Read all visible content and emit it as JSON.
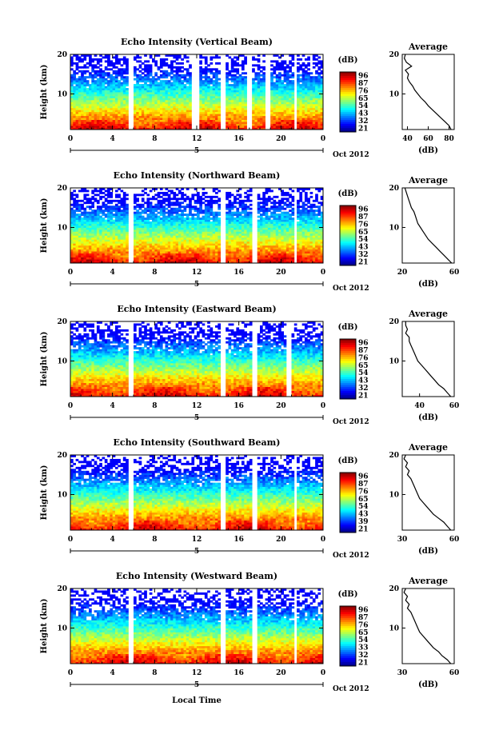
{
  "figure": {
    "xlabel": "Local Time",
    "date_label": "Oct 2012",
    "day_label": "5",
    "ylabel": "Height (km)",
    "avg_title": "Average",
    "avg_xlabel": "(dB)",
    "colorbar_unit": "(dB)"
  },
  "chart_data": [
    {
      "type": "heatmap",
      "title": "Echo Intensity (Vertical Beam)",
      "xlabel": "Local Time",
      "ylabel": "Height (km)",
      "x_ticks": [
        "0",
        "4",
        "8",
        "12",
        "16",
        "20",
        "0"
      ],
      "y_ticks": [
        "10",
        "20"
      ],
      "xlim": [
        0,
        24
      ],
      "ylim": [
        1,
        20
      ],
      "colorbar_ticks": [
        "96",
        "87",
        "76",
        "65",
        "54",
        "43",
        "32",
        "21"
      ],
      "data_gaps_hours": [
        [
          5.4,
          6.0
        ],
        [
          11.6,
          12.3
        ],
        [
          14.3,
          14.8
        ],
        [
          16.7,
          17.2
        ],
        [
          18.4,
          19.0
        ],
        [
          21.2,
          21.6
        ]
      ],
      "average_profile": {
        "xlim": [
          35,
          85
        ],
        "x_ticks": [
          "40",
          "60",
          "80"
        ],
        "y_ticks": [
          "10",
          "20"
        ],
        "height_km": [
          1,
          2,
          3,
          4,
          5,
          6,
          7,
          8,
          9,
          10,
          11,
          12,
          13,
          14,
          15,
          16,
          17,
          18,
          19,
          20
        ],
        "db": [
          82,
          80,
          76,
          72,
          68,
          64,
          60,
          57,
          53,
          50,
          47,
          45,
          42,
          40,
          41,
          38,
          44,
          39,
          37,
          38
        ]
      }
    },
    {
      "type": "heatmap",
      "title": "Echo Intensity (Northward Beam)",
      "xlabel": "Local Time",
      "ylabel": "Height (km)",
      "x_ticks": [
        "0",
        "4",
        "8",
        "12",
        "16",
        "20",
        "0"
      ],
      "y_ticks": [
        "10",
        "20"
      ],
      "xlim": [
        0,
        24
      ],
      "ylim": [
        1,
        20
      ],
      "colorbar_ticks": [
        "96",
        "87",
        "76",
        "65",
        "54",
        "43",
        "32",
        "21"
      ],
      "data_gaps_hours": [
        [
          5.4,
          6.0
        ],
        [
          14.3,
          14.8
        ],
        [
          17.3,
          17.8
        ],
        [
          21.2,
          21.6
        ]
      ],
      "average_profile": {
        "xlim": [
          20,
          60
        ],
        "x_ticks": [
          "20",
          "60"
        ],
        "y_ticks": [
          "10",
          "20"
        ],
        "height_km": [
          1,
          2,
          3,
          4,
          5,
          6,
          7,
          8,
          9,
          10,
          11,
          12,
          13,
          14,
          15,
          16,
          17,
          18,
          19,
          20
        ],
        "db": [
          58,
          55,
          52,
          49,
          46,
          43,
          40,
          38,
          36,
          34,
          32,
          31,
          30,
          29,
          27,
          26,
          25,
          24,
          23,
          22
        ]
      }
    },
    {
      "type": "heatmap",
      "title": "Echo Intensity (Eastward Beam)",
      "xlabel": "Local Time",
      "ylabel": "Height (km)",
      "x_ticks": [
        "0",
        "4",
        "8",
        "12",
        "16",
        "20",
        "0"
      ],
      "y_ticks": [
        "10",
        "20"
      ],
      "xlim": [
        0,
        24
      ],
      "ylim": [
        1,
        20
      ],
      "colorbar_ticks": [
        "96",
        "87",
        "76",
        "65",
        "54",
        "43",
        "32",
        "21"
      ],
      "data_gaps_hours": [
        [
          5.4,
          6.0
        ],
        [
          14.3,
          14.8
        ],
        [
          17.3,
          17.8
        ],
        [
          20.5,
          20.9
        ]
      ],
      "average_profile": {
        "xlim": [
          30,
          60
        ],
        "x_ticks": [
          "40",
          "60"
        ],
        "y_ticks": [
          "10",
          "20"
        ],
        "height_km": [
          1,
          2,
          3,
          4,
          5,
          6,
          7,
          8,
          9,
          10,
          11,
          12,
          13,
          14,
          15,
          16,
          17,
          18,
          19,
          20
        ],
        "db": [
          58,
          56,
          54,
          51,
          49,
          47,
          45,
          43,
          41,
          39,
          38,
          37,
          36,
          35,
          34,
          34,
          32,
          33,
          32,
          32
        ]
      }
    },
    {
      "type": "heatmap",
      "title": "Echo Intensity (Southward Beam)",
      "xlabel": "Local Time",
      "ylabel": "Height (km)",
      "x_ticks": [
        "0",
        "4",
        "8",
        "12",
        "16",
        "20",
        "0"
      ],
      "y_ticks": [
        "10",
        "20"
      ],
      "xlim": [
        0,
        24
      ],
      "ylim": [
        1,
        20
      ],
      "colorbar_ticks": [
        "96",
        "87",
        "76",
        "65",
        "54",
        "43",
        "39",
        "21"
      ],
      "data_gaps_hours": [
        [
          5.4,
          6.0
        ],
        [
          14.3,
          14.8
        ],
        [
          17.3,
          17.8
        ],
        [
          21.2,
          21.6
        ]
      ],
      "average_profile": {
        "xlim": [
          30,
          60
        ],
        "x_ticks": [
          "30",
          "60"
        ],
        "y_ticks": [
          "10",
          "20"
        ],
        "height_km": [
          1,
          2,
          3,
          4,
          5,
          6,
          7,
          8,
          9,
          10,
          11,
          12,
          13,
          14,
          15,
          16,
          17,
          18,
          19,
          20
        ],
        "db": [
          58,
          56,
          54,
          51,
          48,
          46,
          44,
          42,
          40,
          39,
          38,
          37,
          36,
          35,
          33,
          34,
          32,
          33,
          31,
          32
        ]
      }
    },
    {
      "type": "heatmap",
      "title": "Echo Intensity (Westward Beam)",
      "xlabel": "Local Time",
      "ylabel": "Height (km)",
      "x_ticks": [
        "0",
        "4",
        "8",
        "12",
        "16",
        "20",
        "0"
      ],
      "y_ticks": [
        "10",
        "20"
      ],
      "xlim": [
        0,
        24
      ],
      "ylim": [
        1,
        20
      ],
      "colorbar_ticks": [
        "96",
        "87",
        "76",
        "65",
        "54",
        "33",
        "32",
        "21"
      ],
      "data_gaps_hours": [
        [
          5.4,
          6.0
        ],
        [
          14.3,
          14.8
        ],
        [
          17.3,
          17.8
        ],
        [
          21.2,
          21.6
        ]
      ],
      "average_profile": {
        "xlim": [
          30,
          60
        ],
        "x_ticks": [
          "30",
          "60"
        ],
        "y_ticks": [
          "10",
          "20"
        ],
        "height_km": [
          1,
          2,
          3,
          4,
          5,
          6,
          7,
          8,
          9,
          10,
          11,
          12,
          13,
          14,
          15,
          16,
          17,
          18,
          19,
          20
        ],
        "db": [
          58,
          56,
          53,
          51,
          48,
          46,
          44,
          42,
          40,
          39,
          38,
          37,
          36,
          35,
          33,
          34,
          32,
          33,
          31,
          32
        ]
      }
    }
  ]
}
